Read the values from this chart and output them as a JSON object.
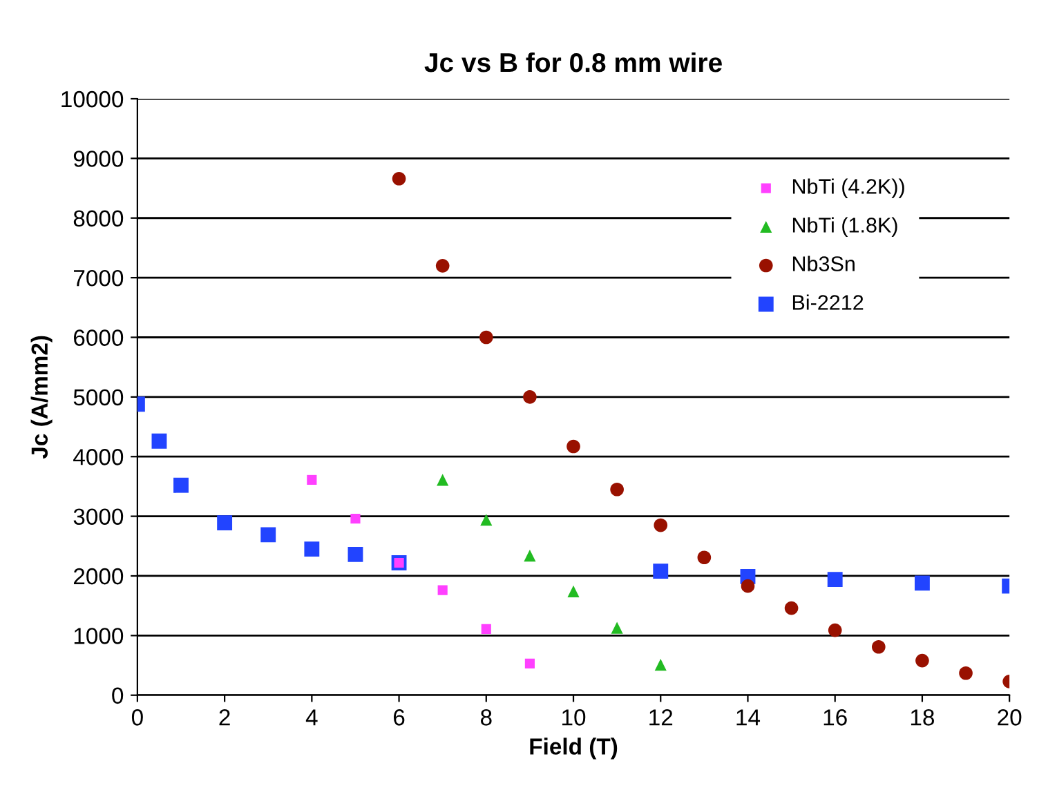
{
  "chart_data": {
    "type": "scatter",
    "title": "Jc vs B for 0.8 mm wire",
    "xlabel": "Field (T)",
    "ylabel": "Jc (A/mm2)",
    "xlim": [
      0,
      20
    ],
    "xticks": [
      0,
      2,
      4,
      6,
      8,
      10,
      12,
      14,
      16,
      18,
      20
    ],
    "ylim": [
      0,
      10000
    ],
    "yticks": [
      0,
      1000,
      2000,
      3000,
      4000,
      5000,
      6000,
      7000,
      8000,
      9000,
      10000
    ],
    "grid": "y",
    "legend": "right",
    "series": [
      {
        "name": "NbTi (4.2K))",
        "color": "#ff40ff",
        "marker": "square",
        "x": [
          4,
          5,
          6,
          7,
          8,
          9
        ],
        "values": [
          3610,
          2960,
          2220,
          1760,
          1110,
          530
        ]
      },
      {
        "name": "NbTi (1.8K)",
        "color": "#22bb22",
        "marker": "triangle",
        "x": [
          7,
          8,
          9,
          10,
          11,
          12
        ],
        "values": [
          3610,
          2940,
          2340,
          1740,
          1130,
          510
        ]
      },
      {
        "name": "Nb3Sn",
        "color": "#991100",
        "marker": "circle",
        "x": [
          6,
          7,
          8,
          9,
          10,
          11,
          12,
          13,
          14,
          15,
          16,
          17,
          18,
          19,
          20
        ],
        "values": [
          8660,
          7200,
          6000,
          5000,
          4170,
          3450,
          2850,
          2310,
          1830,
          1460,
          1090,
          810,
          580,
          370,
          230
        ]
      },
      {
        "name": "Bi-2212",
        "color": "#2244ff",
        "marker": "square",
        "x": [
          0,
          0.5,
          1,
          2,
          3,
          4,
          5,
          6,
          12,
          14,
          16,
          18,
          20
        ],
        "values": [
          4880,
          4260,
          3520,
          2890,
          2690,
          2450,
          2360,
          2220,
          2080,
          1990,
          1940,
          1880,
          1830
        ]
      }
    ]
  }
}
